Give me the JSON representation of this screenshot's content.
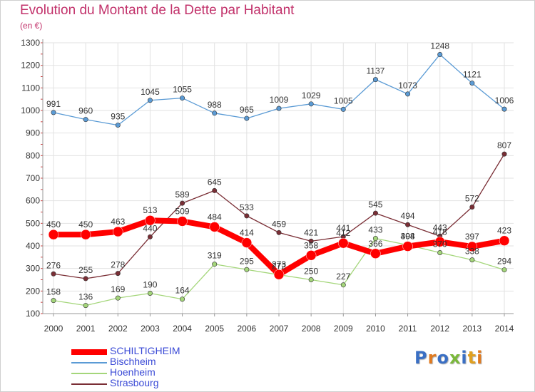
{
  "title": "Evolution du Montant de la Dette par Habitant",
  "unit": "(en €)",
  "logo": "Proxiti",
  "logo_colors": [
    "#3a6fc4",
    "#e07a1f",
    "#3a6fc4",
    "#7ab83a",
    "#3a6fc4",
    "#e0a020",
    "#e07a1f"
  ],
  "chart_data": {
    "type": "line",
    "x": [
      "2000",
      "2001",
      "2002",
      "2003",
      "2004",
      "2005",
      "2006",
      "2007",
      "2008",
      "2009",
      "2010",
      "2011",
      "2012",
      "2013",
      "2014"
    ],
    "ylim": [
      100,
      1300
    ],
    "yticks": [
      100,
      200,
      300,
      400,
      500,
      600,
      700,
      800,
      900,
      1000,
      1100,
      1200,
      1300
    ],
    "grid": true,
    "legend_position": "bottom-left",
    "series": [
      {
        "name": "Bischheim",
        "color": "#5b9bd5",
        "values": [
          991,
          960,
          935,
          1045,
          1055,
          988,
          965,
          1009,
          1029,
          1005,
          1137,
          1073,
          1248,
          1121,
          1006
        ]
      },
      {
        "name": "Hoenheim",
        "color": "#a4d67a",
        "values": [
          158,
          136,
          169,
          190,
          164,
          319,
          295,
          272,
          250,
          227,
          433,
          404,
          370,
          338,
          294
        ]
      },
      {
        "name": "Strasbourg",
        "color": "#7a2e35",
        "values": [
          276,
          255,
          278,
          440,
          589,
          645,
          533,
          459,
          421,
          441,
          545,
          494,
          443,
          572,
          807
        ]
      },
      {
        "name": "SCHILTIGHEIM",
        "color": "#ff0000",
        "values": [
          450,
          450,
          463,
          513,
          509,
          484,
          414,
          273,
          358,
          412,
          366,
          398,
          418,
          397,
          423
        ]
      }
    ],
    "point_labels": [
      [
        "991",
        "960",
        "935",
        "1045",
        "1055",
        "988",
        "965",
        "1009",
        "1029",
        "1005",
        "1137",
        "1073",
        "1248",
        "1121",
        "1006"
      ],
      [
        "158",
        "136",
        "169",
        "190",
        "164",
        "319",
        "295",
        "272",
        "250",
        "227",
        "433",
        "404",
        "370",
        "338",
        "294"
      ],
      [
        "276",
        "255",
        "278",
        "440",
        "589",
        "645",
        "533",
        "459",
        "421",
        "441",
        "545",
        "494",
        "443",
        "572",
        "807"
      ],
      [
        "450",
        "450",
        "463",
        "513",
        "509",
        "484",
        "414",
        "273",
        "358",
        "412",
        "366",
        "398",
        "418",
        "397",
        "423"
      ]
    ]
  }
}
